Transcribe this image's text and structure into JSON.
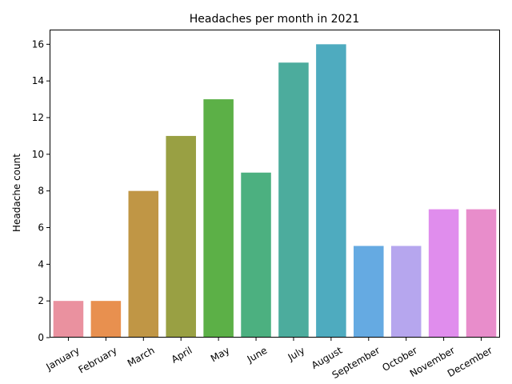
{
  "chart_data": {
    "type": "bar",
    "title": "Headaches per month in 2021",
    "xlabel": "",
    "ylabel": "Headache count",
    "categories": [
      "January",
      "February",
      "March",
      "April",
      "May",
      "June",
      "July",
      "August",
      "September",
      "October",
      "November",
      "December"
    ],
    "values": [
      2,
      2,
      8,
      11,
      13,
      9,
      15,
      16,
      5,
      5,
      7,
      7
    ],
    "colors": [
      "#ea919f",
      "#e8904f",
      "#c09645",
      "#99a043",
      "#5cb047",
      "#4cb080",
      "#4cac9d",
      "#4eabbf",
      "#65aae2",
      "#b6a6ee",
      "#e08ded",
      "#e88dcb"
    ],
    "ylim": [
      0,
      16.8
    ],
    "yticks": [
      0,
      2,
      4,
      6,
      8,
      10,
      12,
      14,
      16
    ],
    "grid": false,
    "legend": "none"
  }
}
